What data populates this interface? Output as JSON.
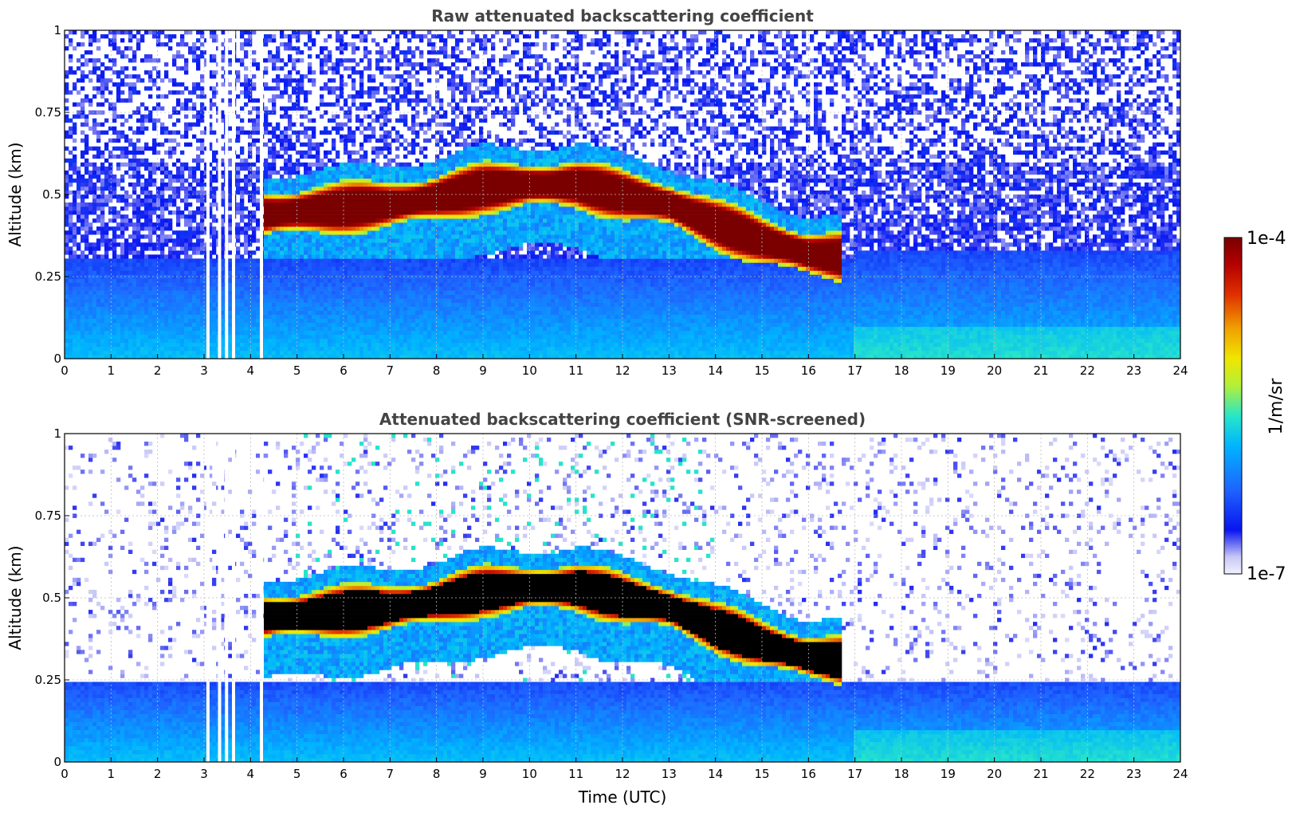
{
  "chart_data": [
    {
      "type": "heatmap",
      "title": "Raw attenuated backscattering coefficient",
      "xlabel": "",
      "ylabel": "Altitude (km)",
      "xlim": [
        0,
        24
      ],
      "ylim": [
        0,
        1
      ],
      "x_ticks": [
        "0",
        "1",
        "2",
        "3",
        "4",
        "5",
        "6",
        "7",
        "8",
        "9",
        "10",
        "11",
        "12",
        "13",
        "14",
        "15",
        "16",
        "17",
        "18",
        "19",
        "20",
        "21",
        "22",
        "23",
        "24"
      ],
      "y_ticks": [
        "0",
        "0.25",
        "0.5",
        "0.75",
        "1"
      ],
      "grid": true,
      "colorscale": "jet, log",
      "data_gaps_hours": [
        3.05,
        3.3,
        3.45,
        3.6,
        4.2
      ],
      "layers": [
        {
          "name": "elevated layer",
          "time_start": 4.3,
          "time_end": 16.7,
          "center_km_profile": [
            [
              4.3,
              0.44
            ],
            [
              6,
              0.46
            ],
            [
              7,
              0.47
            ],
            [
              8,
              0.49
            ],
            [
              9,
              0.52
            ],
            [
              10,
              0.53
            ],
            [
              11,
              0.53
            ],
            [
              12,
              0.5
            ],
            [
              13,
              0.47
            ],
            [
              14,
              0.41
            ],
            [
              15,
              0.36
            ],
            [
              16,
              0.32
            ],
            [
              16.7,
              0.31
            ]
          ],
          "peak": "1e-4"
        },
        {
          "name": "boundary layer",
          "time_start": 0,
          "time_end": 24,
          "top_km": 0.3
        }
      ],
      "noise_top_km": 0.6
    },
    {
      "type": "heatmap",
      "title": "Attenuated backscattering coefficient (SNR-screened)",
      "xlabel": "Time (UTC)",
      "ylabel": "Altitude (km)",
      "xlim": [
        0,
        24
      ],
      "ylim": [
        0,
        1
      ],
      "x_ticks": [
        "0",
        "1",
        "2",
        "3",
        "4",
        "5",
        "6",
        "7",
        "8",
        "9",
        "10",
        "11",
        "12",
        "13",
        "14",
        "15",
        "16",
        "17",
        "18",
        "19",
        "20",
        "21",
        "22",
        "23",
        "24"
      ],
      "y_ticks": [
        "0",
        "0.25",
        "0.5",
        "0.75",
        "1"
      ],
      "grid": true,
      "colorscale": "jet, log",
      "saturation_color": "#000000",
      "layers": [
        {
          "name": "elevated layer (saturated core)",
          "time_start": 4.3,
          "time_end": 16.7
        },
        {
          "name": "boundary layer",
          "time_start": 0,
          "time_end": 24,
          "top_km": 0.25
        }
      ]
    }
  ],
  "colorbar": {
    "max_label": "1e-4",
    "min_label": "1e-7",
    "label": "1/m/sr",
    "stops": [
      "#f0f0ff",
      "#c8c8f6",
      "#0a14f0",
      "#1e64ff",
      "#00b4ff",
      "#28e6c8",
      "#b4f038",
      "#f0e600",
      "#f0a000",
      "#e03000",
      "#b40000",
      "#7a0000"
    ]
  }
}
